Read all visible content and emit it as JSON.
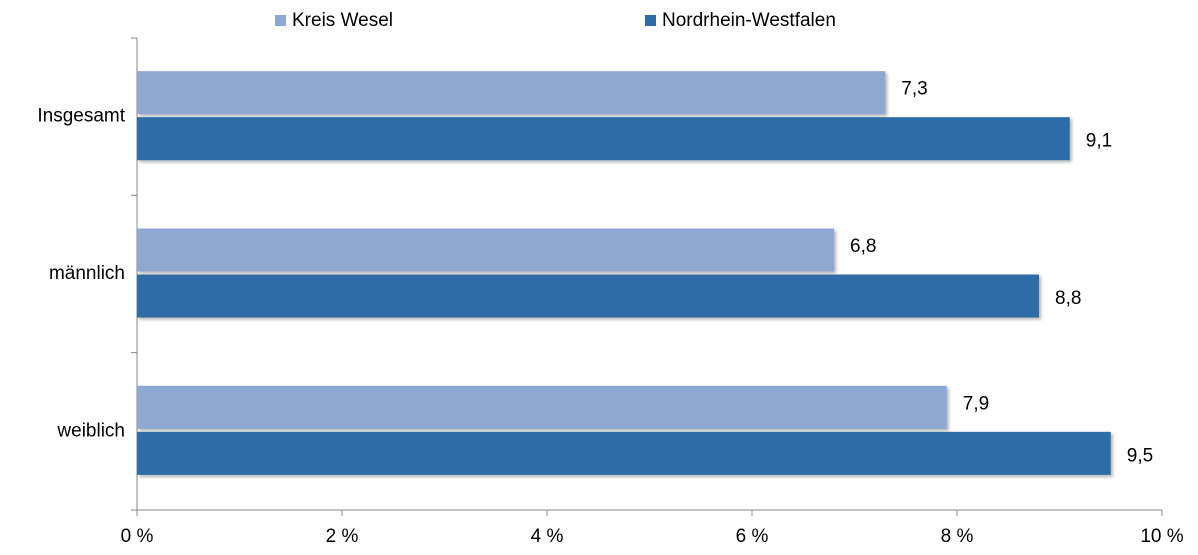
{
  "chart_data": {
    "type": "bar",
    "orientation": "horizontal",
    "categories": [
      "Insgesamt",
      "männlich",
      "weiblich"
    ],
    "series": [
      {
        "name": "Kreis Wesel",
        "color": "#8ea8d2",
        "values": [
          7.3,
          6.8,
          7.9
        ],
        "value_labels": [
          "7,3",
          "6,8",
          "7,9"
        ]
      },
      {
        "name": "Nordrhein-Westfalen",
        "color": "#2e6ca6",
        "values": [
          9.1,
          8.8,
          9.5
        ],
        "value_labels": [
          "9,1",
          "8,8",
          "9,5"
        ]
      }
    ],
    "xlim": [
      0,
      10
    ],
    "xticks": [
      {
        "value": 0,
        "label": "0 %"
      },
      {
        "value": 2,
        "label": "2 %"
      },
      {
        "value": 4,
        "label": "4 %"
      },
      {
        "value": 6,
        "label": "6 %"
      },
      {
        "value": 8,
        "label": "8 %"
      },
      {
        "value": 10,
        "label": "10 %"
      }
    ],
    "legend": "top",
    "grid": false
  }
}
